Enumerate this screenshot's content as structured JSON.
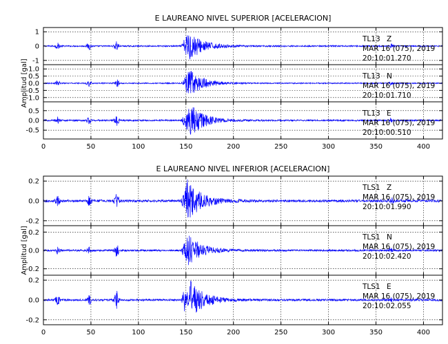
{
  "colors": {
    "trace": "#0000ff",
    "axes": "#000000",
    "background": "#ffffff"
  },
  "chart_data": [
    {
      "type": "line",
      "title": "E LAUREANO NIVEL SUPERIOR [ACELERACION]",
      "ylabel": "Amplitud [gal]",
      "xlim": [
        0,
        420
      ],
      "x_ticks": [
        0,
        50,
        100,
        150,
        200,
        250,
        300,
        350,
        400
      ],
      "grid": true,
      "panels": [
        {
          "station": "TL13",
          "component": "Z",
          "date": "MAR 16 (075), 2019",
          "time": "20:10:01.270",
          "ylim": [
            -1.3,
            1.3
          ],
          "y_ticks": [
            1,
            0,
            -1
          ],
          "y_labels": [
            "1",
            "0",
            "-1"
          ],
          "noise": 0.05,
          "peak": 1.1,
          "peak_time": 153
        },
        {
          "station": "TL13",
          "component": "N",
          "date": "MAR 16 (075), 2019",
          "time": "20:10:01.710",
          "ylim": [
            -1.3,
            1.3
          ],
          "y_ticks": [
            1,
            0.5,
            0,
            -0.5,
            -1
          ],
          "y_labels": [
            "1.0",
            "0.5",
            "0.0",
            "-0.5",
            "-1.0"
          ],
          "noise": 0.04,
          "peak": 0.95,
          "peak_time": 154
        },
        {
          "station": "TL13",
          "component": "E",
          "date": "MAR 16 (075), 2019",
          "time": "20:10:00.510",
          "ylim": [
            -0.95,
            0.95
          ],
          "y_ticks": [
            0.5,
            0,
            -0.5
          ],
          "y_labels": [
            "0.5",
            "0.0",
            "-0.5"
          ],
          "noise": 0.04,
          "peak": 0.85,
          "peak_time": 155
        }
      ]
    },
    {
      "type": "line",
      "title": "E LAUREANO NIVEL INFERIOR [ACELERACION]",
      "ylabel": "Amplitud [gal]",
      "xlim": [
        0,
        420
      ],
      "x_ticks": [
        0,
        50,
        100,
        150,
        200,
        250,
        300,
        350,
        400
      ],
      "grid": true,
      "panels": [
        {
          "station": "TLS1",
          "component": "Z",
          "date": "MAR 16 (075), 2019",
          "time": "20:10:01.990",
          "ylim": [
            -0.25,
            0.25
          ],
          "y_ticks": [
            0.2,
            0,
            -0.2
          ],
          "y_labels": [
            "0.2",
            "0.0",
            "-0.2"
          ],
          "noise": 0.012,
          "peak": 0.23,
          "peak_time": 150
        },
        {
          "station": "TLS1",
          "component": "N",
          "date": "MAR 16 (075), 2019",
          "time": "20:10:02.420",
          "ylim": [
            -0.27,
            0.27
          ],
          "y_ticks": [
            0.2,
            0,
            -0.2
          ],
          "y_labels": [
            "0.2",
            "0.0",
            "-0.2"
          ],
          "noise": 0.01,
          "peak": 0.18,
          "peak_time": 152
        },
        {
          "station": "TLS1",
          "component": "E",
          "date": "MAR 16 (075), 2019",
          "time": "20:10:02.055",
          "ylim": [
            -0.25,
            0.25
          ],
          "y_ticks": [
            0.2,
            0,
            -0.2
          ],
          "y_labels": [
            "0.2",
            "0.0",
            "-0.2"
          ],
          "noise": 0.01,
          "peak": 0.24,
          "peak_time": 152
        }
      ]
    }
  ]
}
